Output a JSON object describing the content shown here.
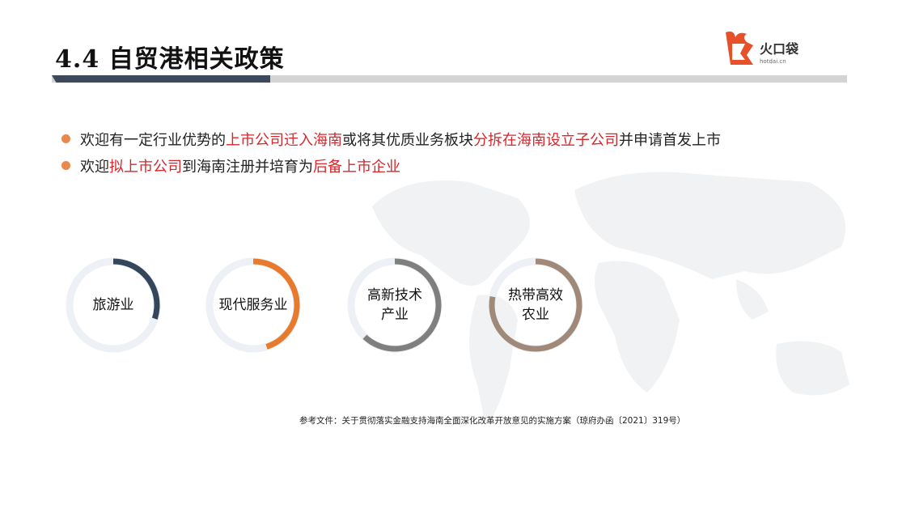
{
  "header": {
    "title": "4.4 自贸港相关政策"
  },
  "logo": {
    "text": "火口袋",
    "sub": "hotdai.cn",
    "color": "#e8502a"
  },
  "bullets": [
    {
      "parts": [
        {
          "text": "欢迎有一定行业优势的",
          "highlight": false
        },
        {
          "text": "上市公司迁入海南",
          "highlight": true
        },
        {
          "text": "或将其优质业务板块",
          "highlight": false
        },
        {
          "text": "分拆在海南设立子公司",
          "highlight": true
        },
        {
          "text": "并申请首发上市",
          "highlight": false
        }
      ]
    },
    {
      "parts": [
        {
          "text": "欢迎",
          "highlight": false
        },
        {
          "text": "拟上市公司",
          "highlight": true
        },
        {
          "text": "到海南注册并培育为",
          "highlight": false
        },
        {
          "text": "后备上市企业",
          "highlight": true
        }
      ]
    }
  ],
  "rings": [
    {
      "lines": [
        "旅游业"
      ],
      "fill": 0.3,
      "color": "#34465a"
    },
    {
      "lines": [
        "现代服务业"
      ],
      "fill": 0.45,
      "color": "#e87a2d"
    },
    {
      "lines": [
        "高新技术",
        "产业"
      ],
      "fill": 0.62,
      "color": "#7f7f7f"
    },
    {
      "lines": [
        "热带高效",
        "农业"
      ],
      "fill": 0.78,
      "color": "#a08978"
    }
  ],
  "colors": {
    "accent": "#e9884a",
    "highlight": "#d9262a",
    "ring_track": "#edf0f4"
  },
  "reference": "参考文件：关于贯彻落实金融支持海南全面深化改革开放意见的实施方案（琼府办函〔2021〕319号）"
}
